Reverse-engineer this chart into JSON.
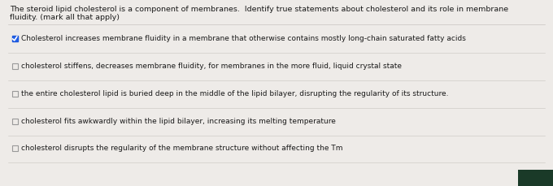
{
  "background_color": "#eeebe8",
  "question_text_line1": "The steroid lipid cholesterol is a component of membranes.  Identify true statements about cholesterol and its role in membrane",
  "question_text_line2": "fluidity. (mark all that apply)",
  "options": [
    {
      "text": "Cholesterol increases membrane fluidity in a membrane that otherwise contains mostly long-chain saturated fatty acids",
      "checked": true
    },
    {
      "text": "cholesterol stiffens, decreases membrane fluidity, for membranes in the more fluid, liquid crystal state",
      "checked": false
    },
    {
      "text": "the entire cholesterol lipid is buried deep in the middle of the lipid bilayer, disrupting the regularity of its structure.",
      "checked": false
    },
    {
      "text": "cholesterol fits awkwardly within the lipid bilayer, increasing its melting temperature",
      "checked": false
    },
    {
      "text": "cholesterol disrupts the regularity of the membrane structure without affecting the Tm",
      "checked": false
    }
  ],
  "checkbox_size": 7,
  "check_color": "#1a56db",
  "check_fill": "#2563eb",
  "text_color": "#1a1a1a",
  "question_fontsize": 6.8,
  "option_fontsize": 6.5,
  "line_color": "#c8c4c0",
  "dark_block_color": "#1a3a28",
  "font_family": "DejaVu Sans"
}
